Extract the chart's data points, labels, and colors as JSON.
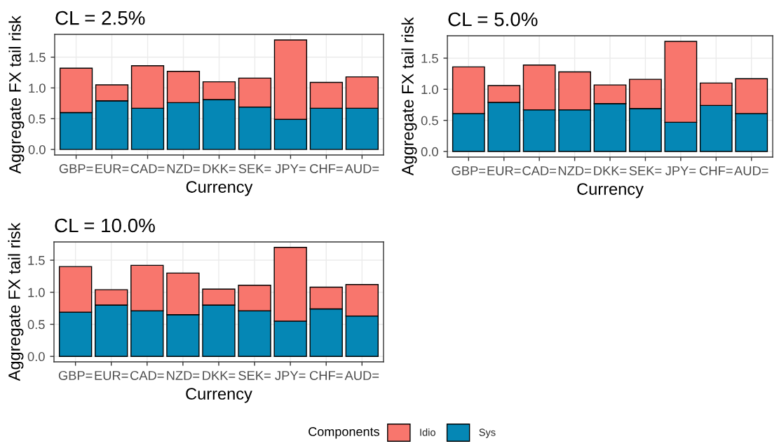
{
  "chart_data": [
    {
      "type": "bar",
      "stacked": true,
      "title": "CL = 2.5%",
      "xlabel": "Currency",
      "ylabel": "Aggregate FX tail risk",
      "categories": [
        "GBP=",
        "EUR=",
        "CAD=",
        "NZD=",
        "DKK=",
        "SEK=",
        "JPY=",
        "CHF=",
        "AUD="
      ],
      "series": [
        {
          "name": "Sys",
          "color": "#0587b5",
          "values": [
            0.6,
            0.79,
            0.67,
            0.76,
            0.81,
            0.69,
            0.49,
            0.67,
            0.67
          ]
        },
        {
          "name": "Idio",
          "color": "#f8766d",
          "values": [
            0.72,
            0.26,
            0.69,
            0.51,
            0.29,
            0.47,
            1.29,
            0.42,
            0.51
          ]
        }
      ],
      "ylim": [
        -0.09,
        1.87
      ],
      "yticks": [
        {
          "value": 0,
          "label": "0.0"
        },
        {
          "value": 0.5,
          "label": "0.5"
        },
        {
          "value": 1,
          "label": "1.0"
        },
        {
          "value": 1.5,
          "label": "1.5"
        }
      ],
      "grid": true,
      "legend": "bottom",
      "legend_title": "Components"
    },
    {
      "type": "bar",
      "stacked": true,
      "title": "CL = 5.0%",
      "xlabel": "Currency",
      "ylabel": "Aggregate FX tail risk",
      "categories": [
        "GBP=",
        "EUR=",
        "CAD=",
        "NZD=",
        "DKK=",
        "SEK=",
        "JPY=",
        "CHF=",
        "AUD="
      ],
      "series": [
        {
          "name": "Sys",
          "color": "#0587b5",
          "values": [
            0.61,
            0.79,
            0.67,
            0.67,
            0.77,
            0.69,
            0.47,
            0.74,
            0.61
          ]
        },
        {
          "name": "Idio",
          "color": "#f8766d",
          "values": [
            0.75,
            0.27,
            0.72,
            0.61,
            0.3,
            0.47,
            1.3,
            0.36,
            0.56
          ]
        }
      ],
      "ylim": [
        -0.09,
        1.86
      ],
      "yticks": [
        {
          "value": 0,
          "label": "0.0"
        },
        {
          "value": 0.5,
          "label": "0.5"
        },
        {
          "value": 1,
          "label": "1.0"
        },
        {
          "value": 1.5,
          "label": "1.5"
        }
      ],
      "grid": true
    },
    {
      "type": "bar",
      "stacked": true,
      "title": "CL = 10.0%",
      "xlabel": "Currency",
      "ylabel": "Aggregate FX tail risk",
      "categories": [
        "GBP=",
        "EUR=",
        "CAD=",
        "NZD=",
        "DKK=",
        "SEK=",
        "JPY=",
        "CHF=",
        "AUD="
      ],
      "series": [
        {
          "name": "Sys",
          "color": "#0587b5",
          "values": [
            0.69,
            0.8,
            0.71,
            0.65,
            0.8,
            0.71,
            0.55,
            0.74,
            0.63
          ]
        },
        {
          "name": "Idio",
          "color": "#f8766d",
          "values": [
            0.71,
            0.24,
            0.71,
            0.65,
            0.25,
            0.4,
            1.15,
            0.34,
            0.49
          ]
        }
      ],
      "ylim": [
        -0.085,
        1.785
      ],
      "yticks": [
        {
          "value": 0,
          "label": "0.0"
        },
        {
          "value": 0.5,
          "label": "0.5"
        },
        {
          "value": 1,
          "label": "1.0"
        },
        {
          "value": 1.5,
          "label": "1.5"
        }
      ],
      "grid": true
    }
  ]
}
